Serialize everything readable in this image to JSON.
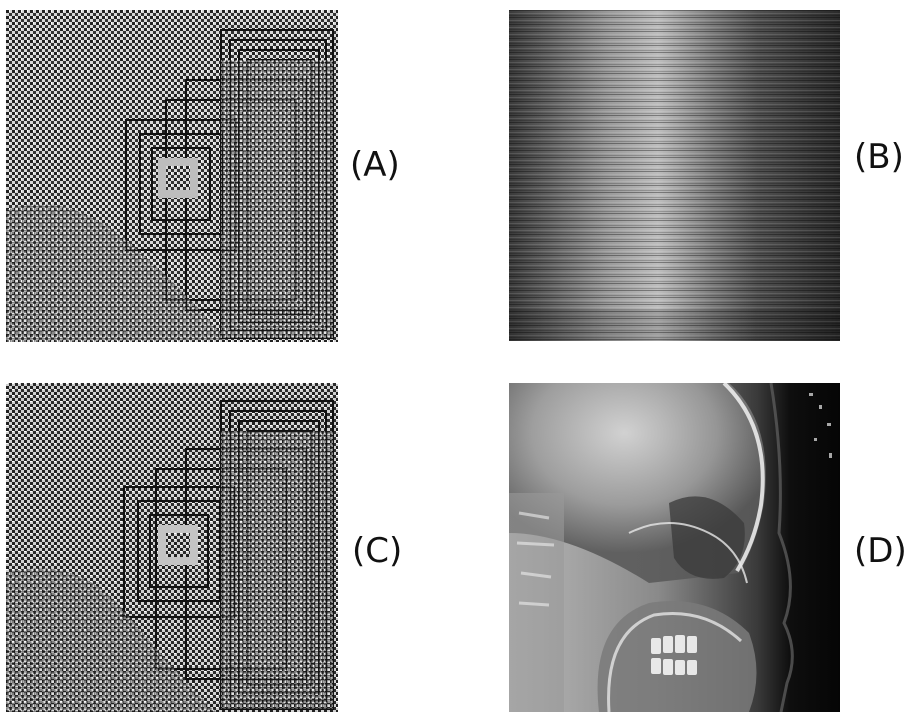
{
  "panels": [
    {
      "id": "A",
      "label": "(A)"
    },
    {
      "id": "B",
      "label": "(B)"
    },
    {
      "id": "C",
      "label": "(C)"
    },
    {
      "id": "D",
      "label": "(D)"
    }
  ],
  "colors": {
    "background": "#ffffff",
    "label_text": "#111111"
  }
}
